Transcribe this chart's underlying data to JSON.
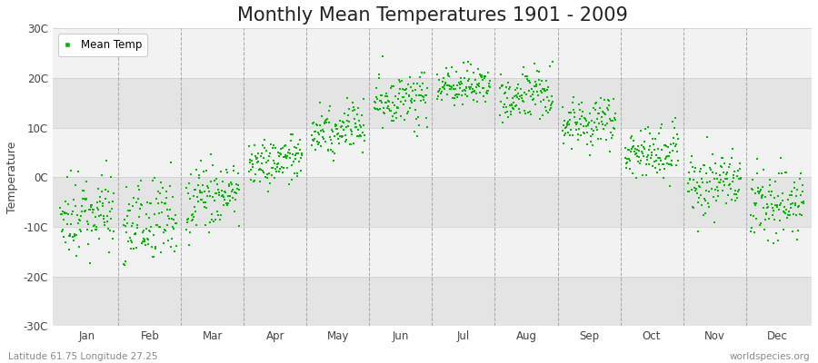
{
  "title": "Monthly Mean Temperatures 1901 - 2009",
  "ylabel": "Temperature",
  "subtitle_left": "Latitude 61.75 Longitude 27.25",
  "subtitle_right": "worldspecies.org",
  "dot_color": "#00bb00",
  "dot_size": 2.5,
  "ylim": [
    -30,
    30
  ],
  "ytick_labels": [
    "30C",
    "20C",
    "10C",
    "0C",
    "-10C",
    "-20C",
    "-30C"
  ],
  "ytick_values": [
    30,
    20,
    10,
    0,
    -10,
    -20,
    -30
  ],
  "month_labels": [
    "Jan",
    "Feb",
    "Mar",
    "Apr",
    "May",
    "Jun",
    "Jul",
    "Aug",
    "Sep",
    "Oct",
    "Nov",
    "Dec"
  ],
  "legend_label": "Mean Temp",
  "fig_bg_color": "#ffffff",
  "band_light": "#f2f2f2",
  "band_dark": "#e4e4e4",
  "vline_color": "#aaaaaa",
  "title_fontsize": 15,
  "axis_fontsize": 9,
  "tick_fontsize": 8.5,
  "monthly_means": [
    -8.5,
    -9.0,
    -4.5,
    2.5,
    9.0,
    14.5,
    17.5,
    16.0,
    10.5,
    4.5,
    -1.5,
    -6.0
  ],
  "monthly_stds": [
    4.5,
    4.5,
    3.5,
    2.5,
    2.5,
    2.5,
    2.0,
    2.5,
    2.5,
    2.5,
    3.0,
    3.5
  ],
  "n_years": 109,
  "seed": 42
}
